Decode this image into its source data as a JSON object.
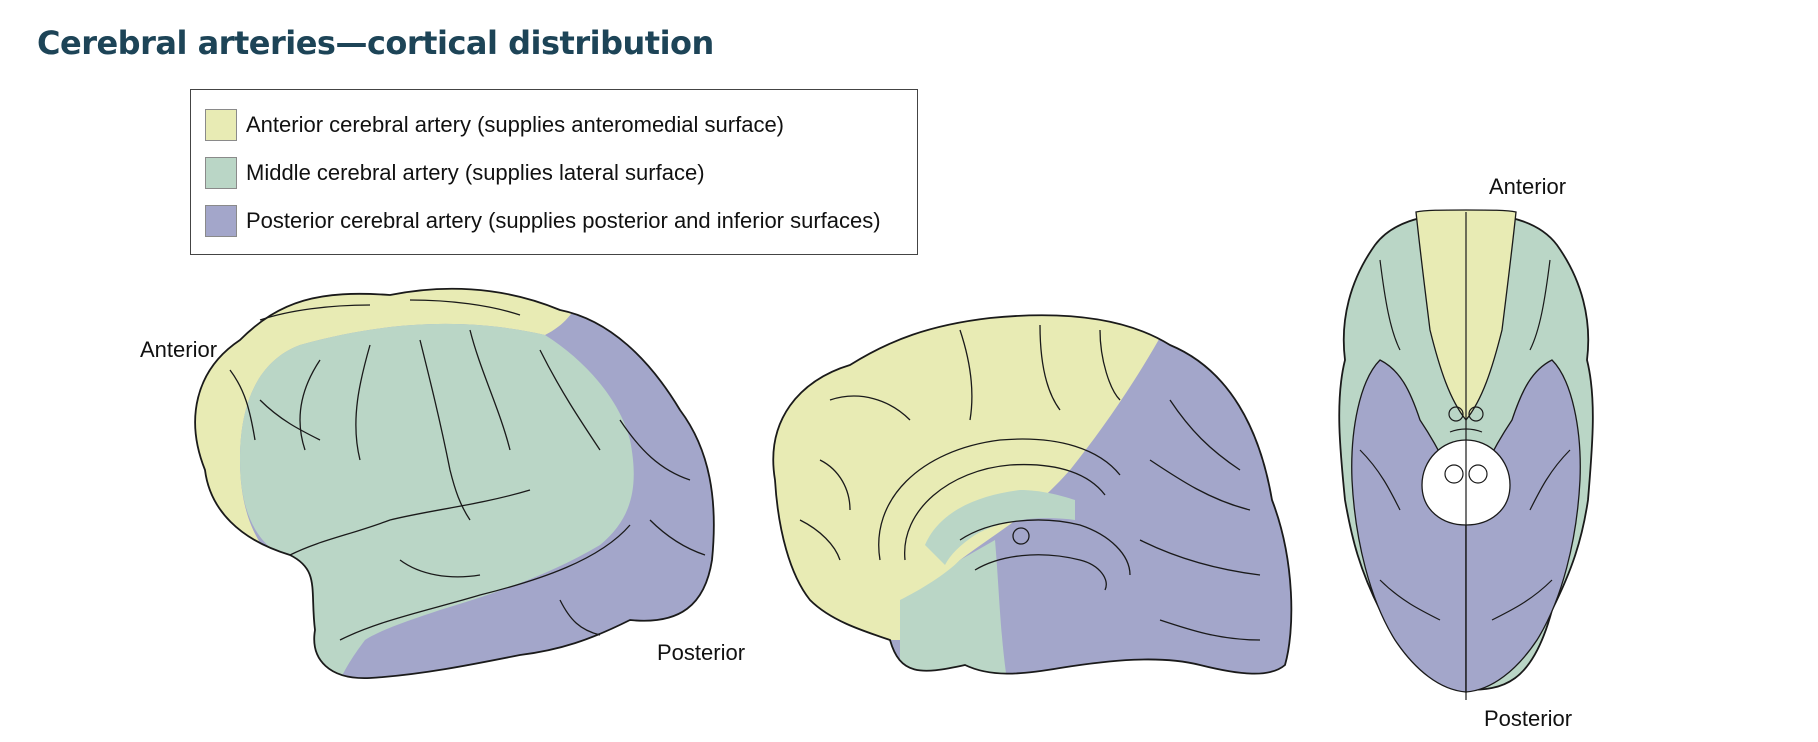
{
  "title": "Cerebral arteries—cortical distribution",
  "legend": {
    "items": [
      {
        "label": "Anterior cerebral artery (supplies anteromedial surface)",
        "color": "#e8ebb4"
      },
      {
        "label": "Middle cerebral artery (supplies lateral surface)",
        "color": "#bad6c6"
      },
      {
        "label": "Posterior cerebral artery (supplies posterior and inferior surfaces)",
        "color": "#a3a6ca"
      }
    ]
  },
  "views": {
    "lateral": {
      "anterior_label": "Anterior",
      "posterior_label": "Posterior"
    },
    "medial": {},
    "inferior": {
      "anterior_label": "Anterior",
      "posterior_label": "Posterior"
    }
  },
  "colors": {
    "outline": "#1a1a1a",
    "title": "#1d4457"
  }
}
